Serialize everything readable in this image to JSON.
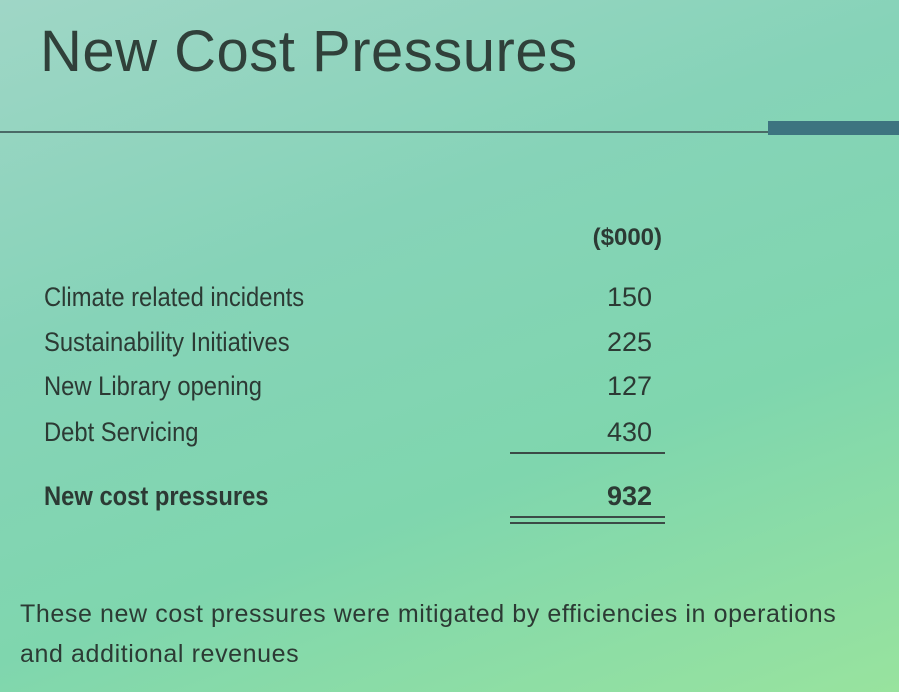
{
  "title": "New Cost Pressures",
  "table": {
    "column_header": "($000)",
    "rows": [
      [
        "Climate related incidents",
        150
      ],
      [
        "Sustainability Initiatives",
        225
      ],
      [
        "New Library opening",
        127
      ],
      [
        "Debt Servicing",
        430
      ]
    ],
    "total": [
      "New cost pressures",
      932
    ]
  },
  "note": "These new cost pressures were mitigated by efficiencies in operations and additional revenues"
}
